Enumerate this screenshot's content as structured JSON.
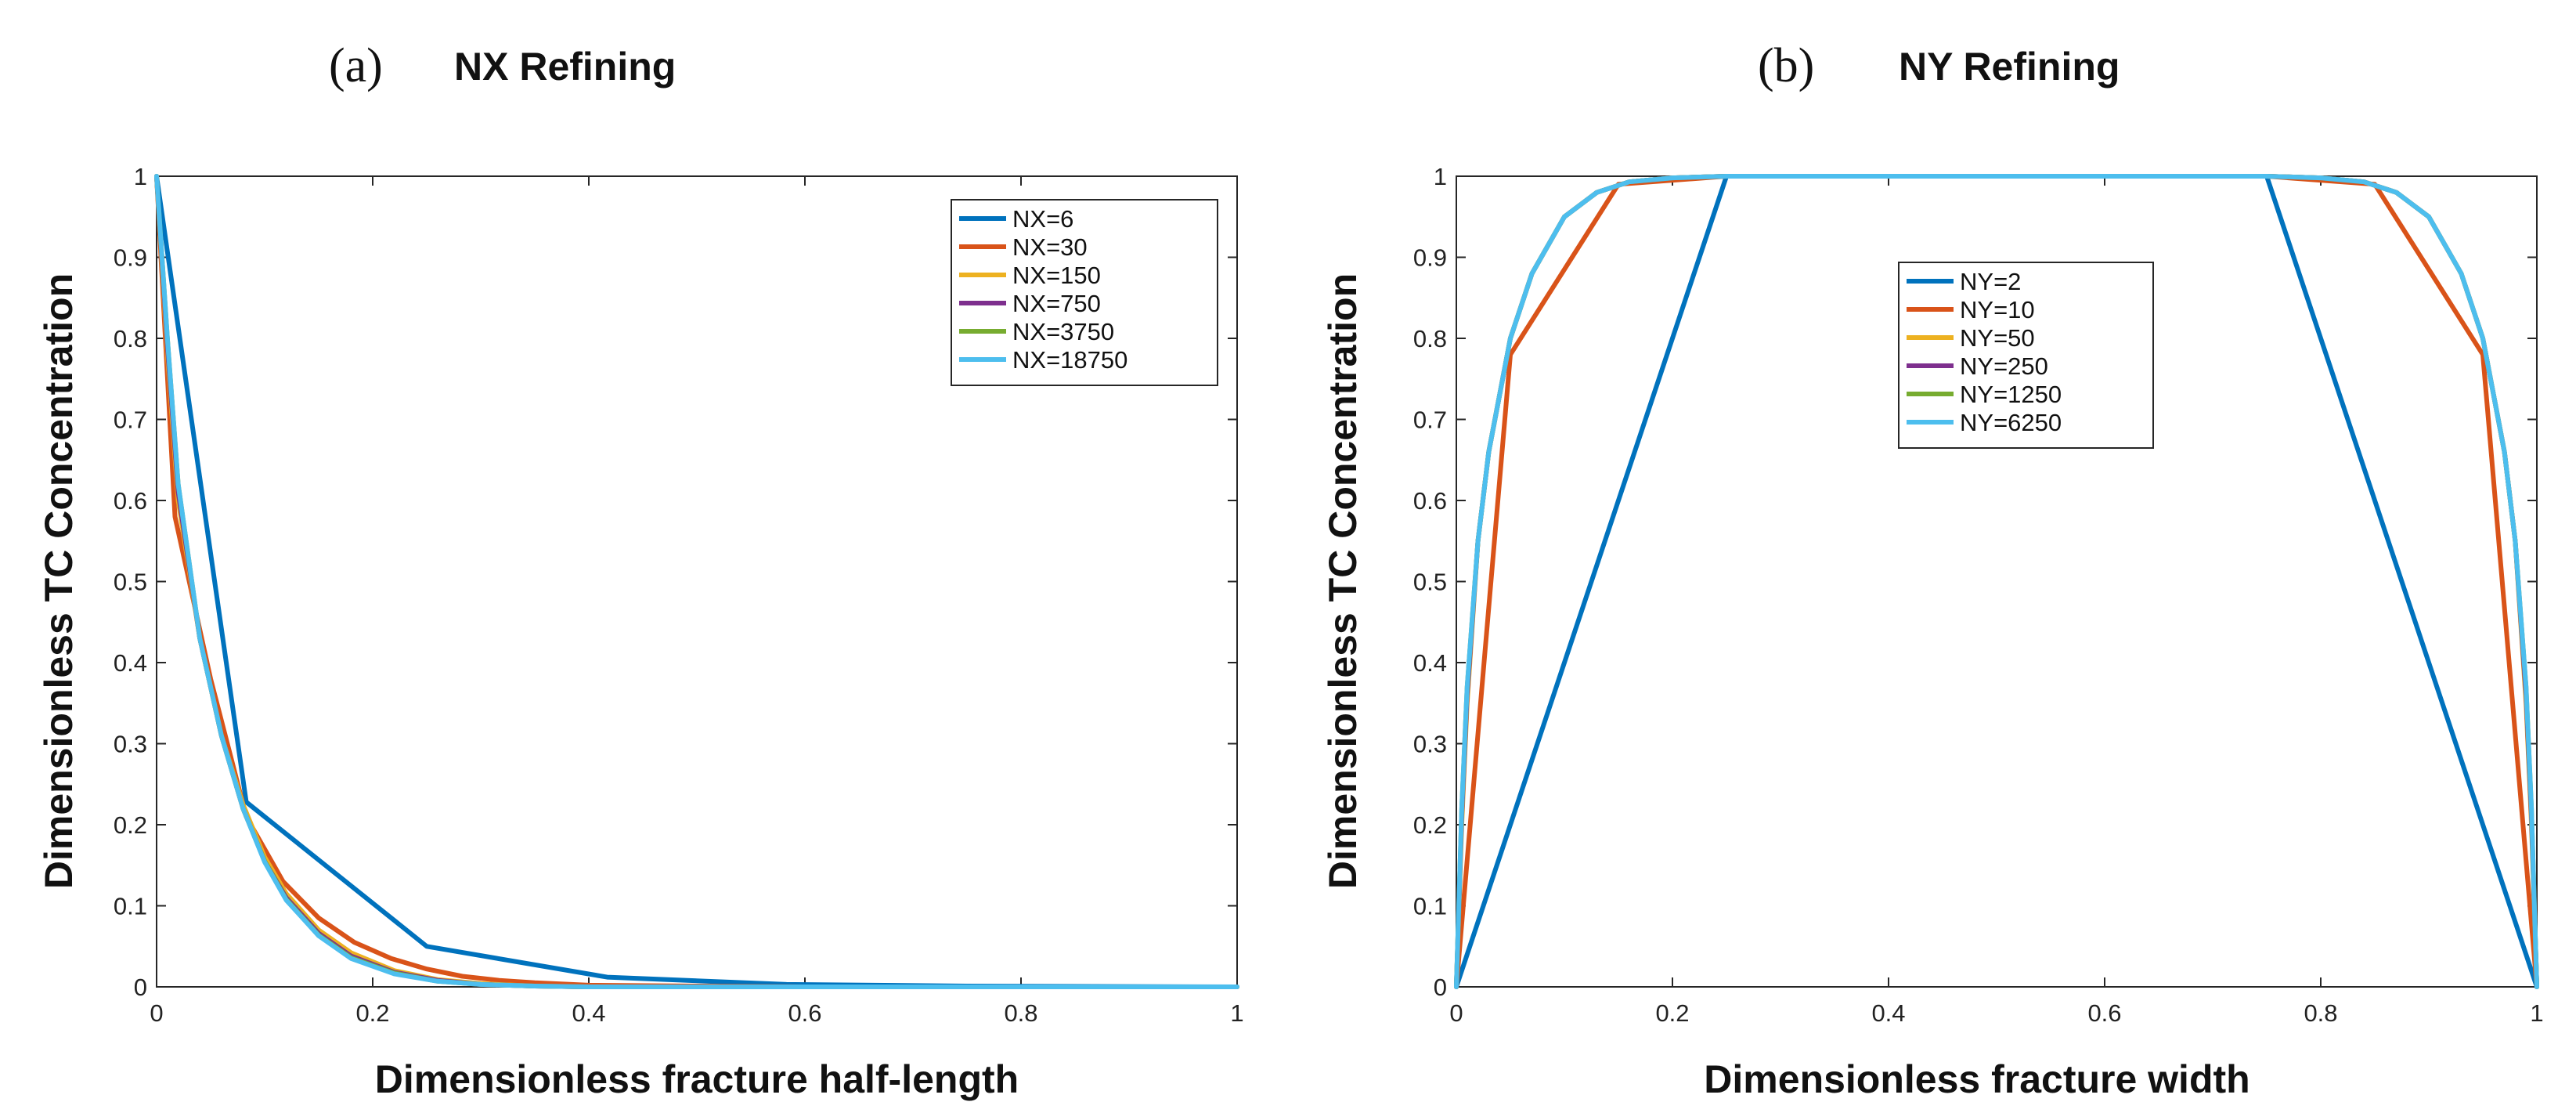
{
  "chart_data": [
    {
      "type": "line",
      "panel_label": "(a)",
      "title": "NX Refining",
      "xlabel": "Dimensionless fracture half-length",
      "ylabel": "Dimensionless TC Concentration",
      "xlim": [
        0,
        1
      ],
      "ylim": [
        0,
        1
      ],
      "xticks": [
        "0",
        "0.2",
        "0.4",
        "0.6",
        "0.8",
        "1"
      ],
      "yticks": [
        "0",
        "0.1",
        "0.2",
        "0.3",
        "0.4",
        "0.5",
        "0.6",
        "0.7",
        "0.8",
        "0.9",
        "1"
      ],
      "legend_position": "top-right",
      "series": [
        {
          "name": "NX=6",
          "color": "#0072BD",
          "x": [
            0,
            0.083,
            0.25,
            0.417,
            0.583,
            0.75,
            1
          ],
          "y": [
            1,
            0.228,
            0.05,
            0.012,
            0.003,
            0.001,
            0
          ]
        },
        {
          "name": "NX=30",
          "color": "#D95319",
          "x": [
            0,
            0.017,
            0.05,
            0.083,
            0.117,
            0.15,
            0.183,
            0.217,
            0.25,
            0.283,
            0.317,
            0.35,
            0.4,
            0.5,
            0.6,
            1
          ],
          "y": [
            1,
            0.58,
            0.38,
            0.21,
            0.13,
            0.085,
            0.055,
            0.035,
            0.022,
            0.013,
            0.008,
            0.005,
            0.002,
            0.001,
            0,
            0
          ]
        },
        {
          "name": "NX=150",
          "color": "#EDB120",
          "x": [
            0,
            0.01,
            0.02,
            0.04,
            0.06,
            0.08,
            0.1,
            0.12,
            0.15,
            0.18,
            0.22,
            0.26,
            0.3,
            0.35,
            0.4,
            0.5,
            0.6,
            1
          ],
          "y": [
            1,
            0.78,
            0.6,
            0.43,
            0.31,
            0.225,
            0.16,
            0.115,
            0.07,
            0.042,
            0.02,
            0.009,
            0.004,
            0.001,
            0,
            0,
            0,
            0
          ]
        },
        {
          "name": "NX=750",
          "color": "#7E2F8E",
          "x": [
            0,
            0.01,
            0.02,
            0.04,
            0.06,
            0.08,
            0.1,
            0.12,
            0.15,
            0.18,
            0.22,
            0.26,
            0.3,
            0.35,
            0.4,
            0.5,
            0.6,
            1
          ],
          "y": [
            1,
            0.79,
            0.61,
            0.43,
            0.31,
            0.22,
            0.155,
            0.11,
            0.066,
            0.038,
            0.018,
            0.008,
            0.003,
            0.001,
            0,
            0,
            0,
            0
          ]
        },
        {
          "name": "NX=3750",
          "color": "#77AC30",
          "x": [
            0,
            0.01,
            0.02,
            0.04,
            0.06,
            0.08,
            0.1,
            0.12,
            0.15,
            0.18,
            0.22,
            0.26,
            0.3,
            0.35,
            0.4,
            0.5,
            0.6,
            1
          ],
          "y": [
            1,
            0.8,
            0.62,
            0.43,
            0.31,
            0.22,
            0.155,
            0.108,
            0.064,
            0.036,
            0.017,
            0.007,
            0.003,
            0.001,
            0,
            0,
            0,
            0
          ]
        },
        {
          "name": "NX=18750",
          "color": "#4DBEEE",
          "x": [
            0,
            0.01,
            0.02,
            0.04,
            0.06,
            0.08,
            0.1,
            0.12,
            0.15,
            0.18,
            0.22,
            0.26,
            0.3,
            0.35,
            0.4,
            0.5,
            0.6,
            1
          ],
          "y": [
            1,
            0.8,
            0.62,
            0.43,
            0.31,
            0.22,
            0.154,
            0.107,
            0.063,
            0.035,
            0.016,
            0.007,
            0.003,
            0.001,
            0,
            0,
            0,
            0
          ]
        }
      ]
    },
    {
      "type": "line",
      "panel_label": "(b)",
      "title": "NY Refining",
      "xlabel": "Dimensionless fracture width",
      "ylabel": "Dimensionless TC Concentration",
      "xlim": [
        0,
        1
      ],
      "ylim": [
        0,
        1
      ],
      "xticks": [
        "0",
        "0.2",
        "0.4",
        "0.6",
        "0.8",
        "1"
      ],
      "yticks": [
        "0",
        "0.1",
        "0.2",
        "0.3",
        "0.4",
        "0.5",
        "0.6",
        "0.7",
        "0.8",
        "0.9",
        "1"
      ],
      "legend_position": "top-center",
      "series": [
        {
          "name": "NY=2",
          "color": "#0072BD",
          "x": [
            0,
            0.25,
            0.75,
            1
          ],
          "y": [
            0,
            1,
            1,
            0
          ]
        },
        {
          "name": "NY=10",
          "color": "#D95319",
          "x": [
            0,
            0.05,
            0.15,
            0.25,
            0.75,
            0.85,
            0.95,
            1
          ],
          "y": [
            0,
            0.78,
            0.99,
            1,
            1,
            0.99,
            0.78,
            0
          ]
        },
        {
          "name": "NY=50",
          "color": "#EDB120",
          "x": [
            0,
            0.005,
            0.01,
            0.02,
            0.03,
            0.05,
            0.07,
            0.1,
            0.13,
            0.16,
            0.2,
            0.25,
            0.75,
            0.8,
            0.84,
            0.87,
            0.9,
            0.93,
            0.95,
            0.97,
            0.98,
            0.99,
            0.995,
            1
          ],
          "y": [
            0,
            0.2,
            0.35,
            0.55,
            0.66,
            0.8,
            0.88,
            0.95,
            0.98,
            0.993,
            0.998,
            1,
            1,
            0.998,
            0.993,
            0.98,
            0.95,
            0.88,
            0.8,
            0.66,
            0.55,
            0.35,
            0.2,
            0
          ]
        },
        {
          "name": "NY=250",
          "color": "#7E2F8E",
          "x": [
            0,
            0.005,
            0.01,
            0.02,
            0.03,
            0.05,
            0.07,
            0.1,
            0.13,
            0.16,
            0.2,
            0.25,
            0.75,
            0.8,
            0.84,
            0.87,
            0.9,
            0.93,
            0.95,
            0.97,
            0.98,
            0.99,
            0.995,
            1
          ],
          "y": [
            0,
            0.21,
            0.36,
            0.55,
            0.66,
            0.8,
            0.88,
            0.95,
            0.98,
            0.993,
            0.998,
            1,
            1,
            0.998,
            0.993,
            0.98,
            0.95,
            0.88,
            0.8,
            0.66,
            0.55,
            0.36,
            0.21,
            0
          ]
        },
        {
          "name": "NY=1250",
          "color": "#77AC30",
          "x": [
            0,
            0.005,
            0.01,
            0.02,
            0.03,
            0.05,
            0.07,
            0.1,
            0.13,
            0.16,
            0.2,
            0.25,
            0.75,
            0.8,
            0.84,
            0.87,
            0.9,
            0.93,
            0.95,
            0.97,
            0.98,
            0.99,
            0.995,
            1
          ],
          "y": [
            0,
            0.22,
            0.37,
            0.55,
            0.66,
            0.8,
            0.88,
            0.95,
            0.98,
            0.993,
            0.998,
            1,
            1,
            0.998,
            0.993,
            0.98,
            0.95,
            0.88,
            0.8,
            0.66,
            0.55,
            0.37,
            0.22,
            0
          ]
        },
        {
          "name": "NY=6250",
          "color": "#4DBEEE",
          "x": [
            0,
            0.005,
            0.01,
            0.02,
            0.03,
            0.05,
            0.07,
            0.1,
            0.13,
            0.16,
            0.2,
            0.25,
            0.75,
            0.8,
            0.84,
            0.87,
            0.9,
            0.93,
            0.95,
            0.97,
            0.98,
            0.99,
            0.995,
            1
          ],
          "y": [
            0,
            0.22,
            0.37,
            0.55,
            0.66,
            0.8,
            0.88,
            0.95,
            0.98,
            0.993,
            0.998,
            1,
            1,
            0.998,
            0.993,
            0.98,
            0.95,
            0.88,
            0.8,
            0.66,
            0.55,
            0.37,
            0.22,
            0
          ]
        }
      ]
    }
  ]
}
